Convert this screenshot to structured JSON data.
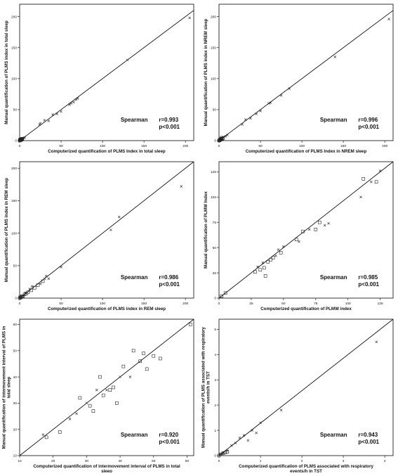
{
  "chart_data": [
    {
      "type": "scatter",
      "xlabel": "Computerized quantification of PLMS Index in total sleep",
      "ylabel": "Manual quantification of PLMS index in total sleep",
      "xlim": [
        0,
        210
      ],
      "ylim": [
        0,
        220
      ],
      "xticks": [
        "0",
        "50",
        "100",
        "150",
        "200"
      ],
      "yticks": [
        "0",
        "50",
        "100",
        "150",
        "200"
      ],
      "stats": {
        "method": "Spearman",
        "r": "r=0.993",
        "p": "p<0.001"
      },
      "line": [
        [
          0,
          0
        ],
        [
          210,
          210
        ]
      ],
      "series": [
        {
          "marker": "square",
          "points": [
            [
              0,
              0
            ],
            [
              0.5,
              0.8
            ],
            [
              1,
              1
            ],
            [
              1.5,
              1.2
            ],
            [
              2,
              2.5
            ],
            [
              2.5,
              2
            ],
            [
              3,
              3
            ],
            [
              1,
              2
            ],
            [
              2,
              1
            ],
            [
              0.5,
              1.5
            ],
            [
              3,
              2.2
            ]
          ]
        },
        {
          "marker": "x",
          "points": [
            [
              0,
              1
            ],
            [
              1,
              0
            ],
            [
              2,
              3
            ],
            [
              3,
              4
            ],
            [
              4,
              2
            ],
            [
              5,
              4
            ],
            [
              6,
              5
            ],
            [
              24,
              26
            ],
            [
              25,
              28
            ],
            [
              30,
              33
            ],
            [
              35,
              32
            ],
            [
              40,
              42
            ],
            [
              45,
              43
            ],
            [
              50,
              47
            ],
            [
              60,
              58
            ],
            [
              62,
              60
            ],
            [
              65,
              62
            ],
            [
              68,
              66
            ],
            [
              70,
              68
            ],
            [
              130,
              130
            ],
            [
              205,
              198
            ]
          ]
        }
      ]
    },
    {
      "type": "scatter",
      "xlabel": "Computerized quantification of PLMS Index in NREM sleep",
      "ylabel": "Manual quantification of PLMS index in NREM sleep",
      "xlim": [
        0,
        210
      ],
      "ylim": [
        0,
        220
      ],
      "xticks": [
        "0",
        "50",
        "100",
        "150",
        "200"
      ],
      "yticks": [
        "0",
        "50",
        "100",
        "150",
        "200"
      ],
      "stats": {
        "method": "Spearman",
        "r": "r=0.996",
        "p": "p<0.001"
      },
      "line": [
        [
          0,
          0
        ],
        [
          210,
          210
        ]
      ],
      "series": [
        {
          "marker": "square",
          "points": [
            [
              0,
              0
            ],
            [
              1,
              1
            ],
            [
              2,
              1.5
            ],
            [
              1.5,
              2.5
            ],
            [
              3,
              3
            ],
            [
              2.5,
              2
            ],
            [
              0.5,
              0.5
            ],
            [
              4,
              3
            ],
            [
              3,
              4.5
            ],
            [
              5,
              4
            ]
          ]
        },
        {
          "marker": "x",
          "points": [
            [
              0,
              1
            ],
            [
              1,
              0
            ],
            [
              3,
              3
            ],
            [
              5,
              6
            ],
            [
              8,
              7
            ],
            [
              10,
              9
            ],
            [
              28,
              26
            ],
            [
              32,
              34
            ],
            [
              38,
              36
            ],
            [
              45,
              43
            ],
            [
              50,
              48
            ],
            [
              60,
              60
            ],
            [
              62,
              61
            ],
            [
              75,
              73
            ],
            [
              85,
              84
            ],
            [
              140,
              135
            ],
            [
              205,
              196
            ]
          ]
        }
      ]
    },
    {
      "type": "scatter",
      "xlabel": "Computerized quantification of PLMS index in REM sleep",
      "ylabel": "Manual quantification of PLMS index in REM sleep",
      "xlim": [
        0,
        210
      ],
      "ylim": [
        0,
        210
      ],
      "xticks": [
        "0",
        "50",
        "100",
        "150",
        "200"
      ],
      "yticks": [
        "0",
        "50",
        "100",
        "150",
        "200"
      ],
      "stats": {
        "method": "Spearman",
        "r": "r=0.986",
        "p": "p<0.001"
      },
      "line": [
        [
          0,
          0
        ],
        [
          210,
          210
        ]
      ],
      "series": [
        {
          "marker": "square",
          "points": [
            [
              0,
              0
            ],
            [
              1,
              1
            ],
            [
              2,
              2
            ],
            [
              3,
              3
            ],
            [
              4,
              3
            ],
            [
              6,
              6
            ],
            [
              8,
              7
            ],
            [
              10,
              9
            ],
            [
              14,
              12
            ],
            [
              18,
              16
            ],
            [
              22,
              20
            ],
            [
              28,
              26
            ]
          ]
        },
        {
          "marker": "x",
          "points": [
            [
              0,
              2
            ],
            [
              2,
              0
            ],
            [
              5,
              4
            ],
            [
              7,
              8
            ],
            [
              12,
              14
            ],
            [
              15,
              18
            ],
            [
              25,
              22
            ],
            [
              30,
              30
            ],
            [
              32,
              34
            ],
            [
              35,
              30
            ],
            [
              50,
              48
            ],
            [
              110,
              105
            ],
            [
              120,
              125
            ],
            [
              195,
              172
            ]
          ]
        }
      ]
    },
    {
      "type": "scatter",
      "xlabel": "Computerized quantification of PLMW index",
      "ylabel": "Manual quantification of PLMW Index",
      "xlim": [
        0,
        135
      ],
      "ylim": [
        0,
        135
      ],
      "xticks": [
        "0",
        "25",
        "50",
        "75",
        "100",
        "125"
      ],
      "yticks": [
        "0",
        "25",
        "50",
        "75",
        "100",
        "125"
      ],
      "stats": {
        "method": "Spearman",
        "r": "r=0.985",
        "p": "p<0.001"
      },
      "line": [
        [
          0,
          0
        ],
        [
          135,
          135
        ]
      ],
      "series": [
        {
          "marker": "square",
          "points": [
            [
              2,
              2
            ],
            [
              5,
              5
            ],
            [
              28,
              26
            ],
            [
              32,
              28
            ],
            [
              35,
              30
            ],
            [
              36,
              22
            ],
            [
              38,
              36
            ],
            [
              40,
              38
            ],
            [
              42,
              40
            ],
            [
              48,
              45
            ],
            [
              60,
              58
            ],
            [
              65,
              66
            ],
            [
              75,
              68
            ],
            [
              78,
              75
            ],
            [
              112,
              118
            ],
            [
              122,
              115
            ]
          ]
        },
        {
          "marker": "x",
          "points": [
            [
              30,
              31
            ],
            [
              34,
              35
            ],
            [
              44,
              42
            ],
            [
              46,
              48
            ],
            [
              50,
              51
            ],
            [
              62,
              56
            ],
            [
              70,
              68
            ],
            [
              82,
              72
            ],
            [
              85,
              74
            ],
            [
              110,
              100
            ],
            [
              118,
              115
            ],
            [
              125,
              126
            ]
          ]
        }
      ]
    },
    {
      "type": "scatter",
      "xlabel": "Computerized quantification of intermovement interval of PLMS in total sleep",
      "ylabel": "Manual quantification of intermovement interval of PLMS in total sleep",
      "xlim": [
        10,
        62
      ],
      "ylim": [
        10,
        62
      ],
      "xticks": [
        "10",
        "20",
        "30",
        "40",
        "50",
        "60"
      ],
      "yticks": [
        "10",
        "20",
        "30",
        "40",
        "50",
        "60"
      ],
      "stats": {
        "method": "Spearman",
        "r": "r=0.920",
        "p": "p<0.001"
      },
      "line": [
        [
          10,
          10
        ],
        [
          62,
          62
        ]
      ],
      "series": [
        {
          "marker": "square",
          "points": [
            [
              18,
              17
            ],
            [
              22,
              19
            ],
            [
              28,
              32
            ],
            [
              31,
              29
            ],
            [
              32,
              27
            ],
            [
              34,
              40
            ],
            [
              35,
              33
            ],
            [
              37,
              35
            ],
            [
              38,
              36
            ],
            [
              39,
              30
            ],
            [
              41,
              44
            ],
            [
              44,
              50
            ],
            [
              46,
              46
            ],
            [
              47,
              49
            ],
            [
              48,
              43
            ],
            [
              50,
              48
            ],
            [
              52,
              47
            ],
            [
              61,
              60
            ]
          ]
        },
        {
          "marker": "x",
          "points": [
            [
              17,
              18
            ],
            [
              25,
              24
            ],
            [
              27,
              26
            ],
            [
              30,
              30
            ],
            [
              33,
              35
            ],
            [
              36,
              35
            ],
            [
              40,
              40
            ],
            [
              43,
              40
            ]
          ]
        }
      ]
    },
    {
      "type": "scatter",
      "xlabel": "Computerized quantification of PLMS associated with respiratory events/h in TST",
      "ylabel": "Manual quantification of PLMS associated with respiratory events/h in TST",
      "xlim": [
        0,
        4.2
      ],
      "ylim": [
        0,
        5.4
      ],
      "xticks": [
        "0",
        "1",
        "2",
        "3",
        "4"
      ],
      "yticks": [
        "0",
        "1",
        "2",
        "3",
        "4",
        "5"
      ],
      "stats": {
        "method": "Spearman",
        "r": "r=0.943",
        "p": "p<0.001"
      },
      "line": [
        [
          0,
          0
        ],
        [
          4.2,
          5.4
        ]
      ],
      "series": [
        {
          "marker": "square",
          "points": [
            [
              0,
              0
            ],
            [
              0.05,
              0.05
            ],
            [
              0.1,
              0.1
            ],
            [
              0.15,
              0.12
            ],
            [
              0.2,
              0.15
            ]
          ]
        },
        {
          "marker": "x",
          "points": [
            [
              0.05,
              0.05
            ],
            [
              0.1,
              0.1
            ],
            [
              0.2,
              0.2
            ],
            [
              0.3,
              0.4
            ],
            [
              0.4,
              0.5
            ],
            [
              0.5,
              0.7
            ],
            [
              0.6,
              0.8
            ],
            [
              0.7,
              0.6
            ],
            [
              0.8,
              1.0
            ],
            [
              0.9,
              0.9
            ],
            [
              1.0,
              1.3
            ],
            [
              1.5,
              1.8
            ],
            [
              3.8,
              4.5
            ]
          ]
        }
      ]
    }
  ]
}
